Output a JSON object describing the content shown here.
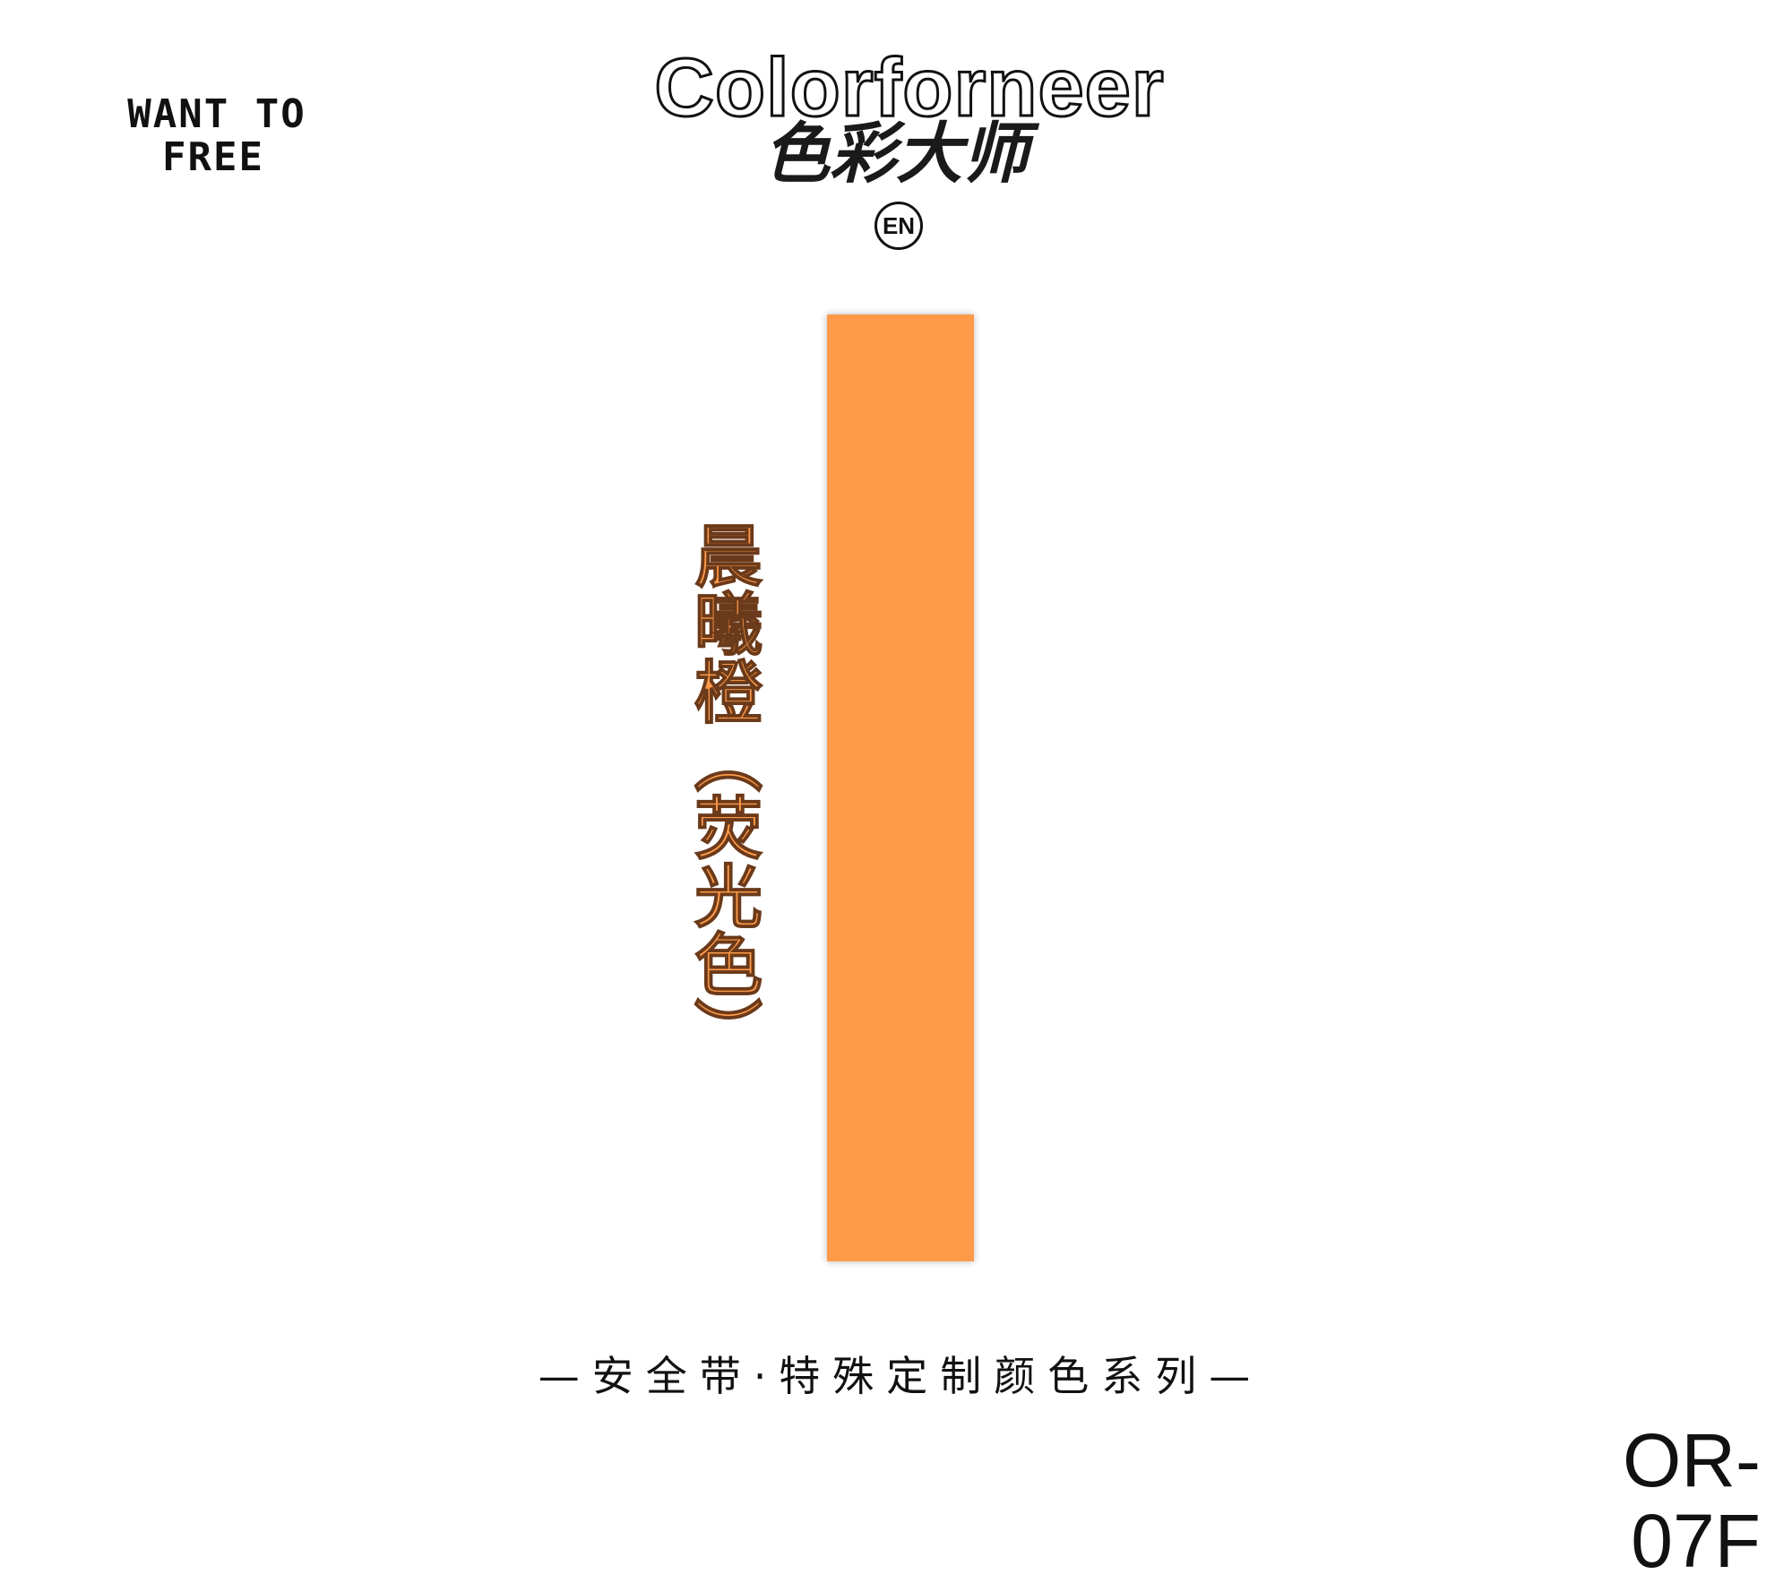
{
  "header": {
    "slogan_line1": "WANT TO",
    "slogan_line2": "FREE",
    "brand_en": "Colorforneer",
    "brand_cn": "色彩大师",
    "seal_letters": "EN"
  },
  "swatch": {
    "color": "#FF9A48",
    "name": "晨曦橙（荧光色）"
  },
  "footer": {
    "series": "—安全带·特殊定制颜色系列—",
    "code": "OR-07F"
  }
}
